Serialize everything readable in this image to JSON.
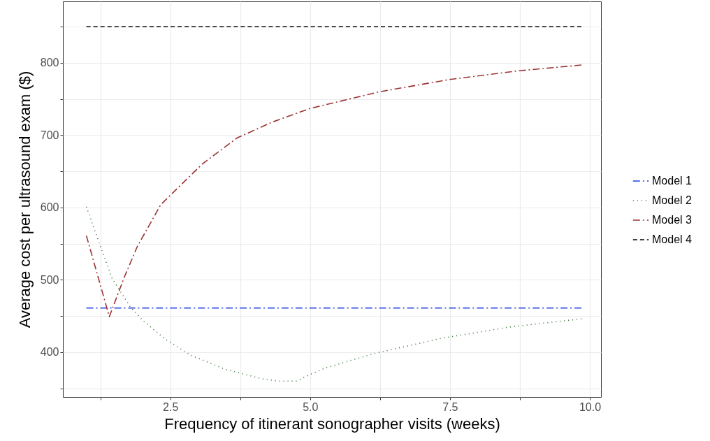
{
  "chart_data": {
    "type": "line",
    "xlabel": "Frequency of itinerant sonographer visits (weeks)",
    "ylabel": "Average cost per ultrasound exam ($)",
    "xlim": [
      0.58,
      10.2
    ],
    "ylim": [
      338,
      885
    ],
    "xticks": [
      {
        "value": 1.25,
        "label": null
      },
      {
        "value": 2.5,
        "label": "2.5"
      },
      {
        "value": 3.75,
        "label": null
      },
      {
        "value": 5,
        "label": "5.0"
      },
      {
        "value": 6.25,
        "label": null
      },
      {
        "value": 7.5,
        "label": "7.5"
      },
      {
        "value": 8.75,
        "label": null
      },
      {
        "value": 10,
        "label": "10.0"
      }
    ],
    "yticks": [
      {
        "value": 350,
        "label": null
      },
      400,
      {
        "value": 450,
        "label": null
      },
      500,
      {
        "value": 550,
        "label": null
      },
      600,
      {
        "value": 650,
        "label": null
      },
      700,
      {
        "value": 750,
        "label": null
      },
      800,
      {
        "value": 850,
        "label": null
      }
    ],
    "grid": true,
    "legend": "right",
    "series": [
      {
        "name": "Model 1",
        "color": "#1f3fe0",
        "line_style": "dashdot",
        "x": [
          1,
          9.85
        ],
        "values": [
          461,
          461
        ]
      },
      {
        "name": "Model 2",
        "color": "#2e6b2e",
        "line_style": "dotted",
        "x": [
          1,
          1.21,
          1.46,
          1.79,
          2.02,
          2.41,
          2.86,
          3.49,
          4.15,
          4.44,
          4.77,
          4.94,
          5.27,
          6.14,
          7.34,
          8.59,
          9.85
        ],
        "values": [
          601,
          555,
          502,
          462,
          443,
          418,
          396,
          376,
          363,
          360,
          360,
          367,
          378,
          398,
          419,
          435,
          446
        ]
      },
      {
        "name": "Model 3",
        "color": "#9b3333",
        "line_style": "dashdot",
        "x": [
          1,
          1.41,
          1.68,
          1.91,
          2.33,
          3.07,
          3.69,
          4.32,
          5.0,
          6.24,
          7.49,
          8.73,
          9.85
        ],
        "values": [
          561,
          449,
          504,
          546,
          604,
          660,
          696,
          718,
          737,
          760,
          777,
          789,
          797
        ]
      },
      {
        "name": "Model 4",
        "color": "#000000",
        "line_style": "dashed",
        "x": [
          1,
          9.85
        ],
        "values": [
          850,
          850
        ]
      }
    ]
  }
}
